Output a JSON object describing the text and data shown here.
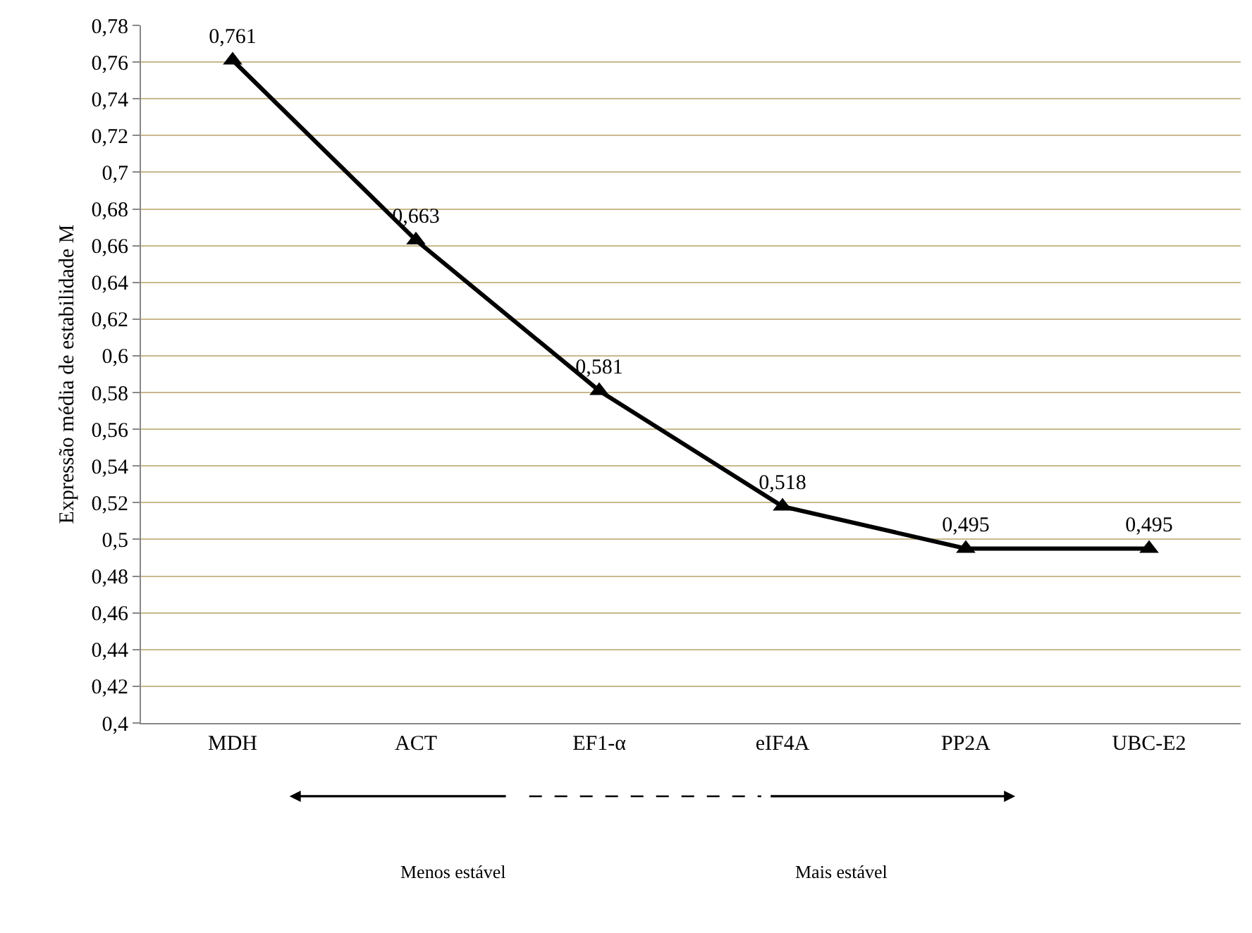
{
  "chart_data": {
    "type": "line",
    "ylabel": "Expressão média de estabilidade M",
    "categories": [
      "MDH",
      "ACT",
      "EF1-α",
      "eIF4A",
      "PP2A",
      "UBC-E2"
    ],
    "series": [
      {
        "color": "#000000",
        "values": [
          0.761,
          0.663,
          0.581,
          0.518,
          0.495,
          0.495
        ],
        "value_labels": [
          "0,761",
          "0,663",
          "0,581",
          "0,518",
          "0,495",
          "0,495"
        ]
      }
    ],
    "ylim": [
      0.4,
      0.78
    ],
    "yticks": [
      {
        "value": 0.4,
        "label": "0,4"
      },
      {
        "value": 0.42,
        "label": "0,42"
      },
      {
        "value": 0.44,
        "label": "0,44"
      },
      {
        "value": 0.46,
        "label": "0,46"
      },
      {
        "value": 0.48,
        "label": "0,48"
      },
      {
        "value": 0.5,
        "label": "0,5"
      },
      {
        "value": 0.52,
        "label": "0,52"
      },
      {
        "value": 0.54,
        "label": "0,54"
      },
      {
        "value": 0.56,
        "label": "0,56"
      },
      {
        "value": 0.58,
        "label": "0,58"
      },
      {
        "value": 0.6,
        "label": "0,6"
      },
      {
        "value": 0.62,
        "label": "0,62"
      },
      {
        "value": 0.64,
        "label": "0,64"
      },
      {
        "value": 0.66,
        "label": "0,66"
      },
      {
        "value": 0.68,
        "label": "0,68"
      },
      {
        "value": 0.7,
        "label": "0,7"
      },
      {
        "value": 0.72,
        "label": "0,72"
      },
      {
        "value": 0.74,
        "label": "0,74"
      },
      {
        "value": 0.76,
        "label": "0,76"
      },
      {
        "value": 0.78,
        "label": "0,78"
      }
    ],
    "grid": "y",
    "marker": "triangle",
    "line_style": "solid",
    "annotations": [
      "Menos estável",
      "Mais estável"
    ]
  }
}
